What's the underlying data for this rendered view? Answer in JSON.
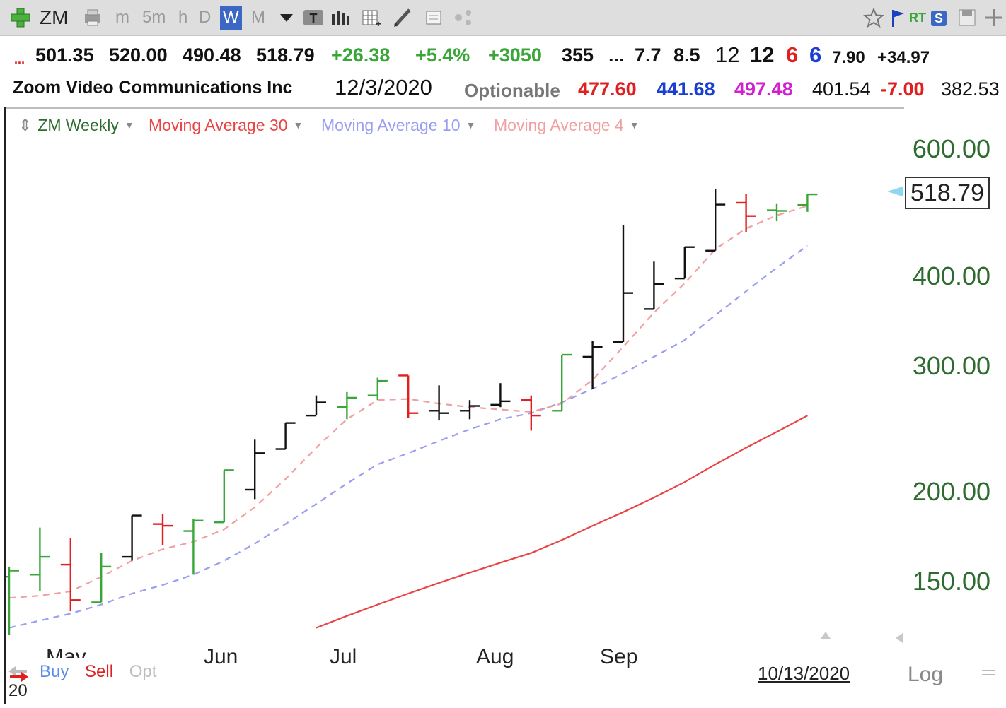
{
  "toolbar": {
    "symbol": "ZM",
    "timeframes": [
      "m",
      "5m",
      "h",
      "D",
      "W",
      "M"
    ],
    "selected_timeframe": "W",
    "rt_label": "RT",
    "s_label": "S",
    "icons": [
      "add-symbol-icon",
      "print-icon",
      "dropdown-icon",
      "text-type-icon",
      "bar-style-icon",
      "grid-add-icon",
      "pencil-icon",
      "note-icon",
      "share-icon",
      "star-icon",
      "flag-icon",
      "save-icon",
      "move-icon"
    ]
  },
  "quote_row1": {
    "ellipsis": "...",
    "open": "501.35",
    "high": "520.00",
    "low": "490.48",
    "close": "518.79",
    "change": "+26.38",
    "change_pct": "+5.4%",
    "v1": "+3050",
    "v2": "355",
    "ellipsis2": "...",
    "v3": "7.7",
    "v4": "8.5",
    "v5": "12",
    "v6": "12",
    "v7": "6",
    "v8": "6",
    "v9": "7.90",
    "v10": "+34.97"
  },
  "quote_row2": {
    "company": "Zoom Video Communications Inc",
    "date": "12/3/2020",
    "optionable": "Optionable",
    "v1": "477.60",
    "v2": "441.68",
    "v3": "497.48",
    "v4": "401.54",
    "v5": "-7.00",
    "v6": "382.53"
  },
  "legend": {
    "price": "ZM Weekly",
    "ma30": "Moving Average 30",
    "ma10": "Moving Average 10",
    "ma4": "Moving Average 4"
  },
  "bottom": {
    "buy": "Buy",
    "sell": "Sell",
    "opt": "Opt",
    "date": "10/13/2020",
    "log": "Log",
    "year_fragment": "20",
    "may_fragment": "May"
  },
  "last_price_label": "518.79",
  "colors": {
    "up": "#3aa63a",
    "down": "#e02020",
    "neutral": "#111111",
    "ma30": "#e84545",
    "ma10": "#9a9ef0",
    "ma4": "#f0a0a0",
    "axis_text": "#2e6b2e",
    "toolbar_bg": "#dedede"
  },
  "chart_data": {
    "type": "ohlc",
    "title": "ZM Weekly",
    "scale": "log",
    "ylim": [
      125,
      640
    ],
    "yticks": [
      150,
      200,
      300,
      400,
      600
    ],
    "ytick_labels": [
      "150.00",
      "200.00",
      "300.00",
      "400.00",
      "600.00"
    ],
    "xlabel": "",
    "ylabel": "",
    "x_tick_labels": [
      "May",
      "Jun",
      "Jul",
      "Aug",
      "Sep"
    ],
    "x_tick_weeks": [
      1,
      8,
      12,
      17,
      21
    ],
    "bars": [
      {
        "week": 0,
        "o": 152,
        "h": 157,
        "l": 118,
        "c": 155,
        "color": "up"
      },
      {
        "week": 1,
        "o": 153,
        "h": 178,
        "l": 145,
        "c": 162,
        "color": "up"
      },
      {
        "week": 2,
        "o": 158,
        "h": 172,
        "l": 136,
        "c": 141,
        "color": "down"
      },
      {
        "week": 3,
        "o": 140,
        "h": 164,
        "l": 140,
        "c": 157,
        "color": "up"
      },
      {
        "week": 4,
        "o": 162,
        "h": 185,
        "l": 160,
        "c": 185,
        "color": "neutral"
      },
      {
        "week": 5,
        "o": 180,
        "h": 186,
        "l": 168,
        "c": 179,
        "color": "down"
      },
      {
        "week": 6,
        "o": 176,
        "h": 183,
        "l": 153,
        "c": 182,
        "color": "up"
      },
      {
        "week": 7,
        "o": 181,
        "h": 214,
        "l": 181,
        "c": 214,
        "color": "up"
      },
      {
        "week": 8,
        "o": 201,
        "h": 236,
        "l": 195,
        "c": 226,
        "color": "neutral"
      },
      {
        "week": 9,
        "o": 229,
        "h": 249,
        "l": 229,
        "c": 249,
        "color": "neutral"
      },
      {
        "week": 10,
        "o": 255,
        "h": 272,
        "l": 255,
        "c": 266,
        "color": "neutral"
      },
      {
        "week": 11,
        "o": 262,
        "h": 275,
        "l": 252,
        "c": 270,
        "color": "up"
      },
      {
        "week": 12,
        "o": 272,
        "h": 288,
        "l": 268,
        "c": 285,
        "color": "up"
      },
      {
        "week": 13,
        "o": 290,
        "h": 290,
        "l": 253,
        "c": 257,
        "color": "down"
      },
      {
        "week": 14,
        "o": 259,
        "h": 281,
        "l": 251,
        "c": 257,
        "color": "neutral"
      },
      {
        "week": 15,
        "o": 259,
        "h": 268,
        "l": 252,
        "c": 263,
        "color": "neutral"
      },
      {
        "week": 16,
        "o": 264,
        "h": 283,
        "l": 262,
        "c": 267,
        "color": "neutral"
      },
      {
        "week": 17,
        "o": 268,
        "h": 272,
        "l": 243,
        "c": 255,
        "color": "down"
      },
      {
        "week": 18,
        "o": 259,
        "h": 310,
        "l": 259,
        "c": 310,
        "color": "up"
      },
      {
        "week": 19,
        "o": 308,
        "h": 324,
        "l": 278,
        "c": 318,
        "color": "neutral"
      },
      {
        "week": 20,
        "o": 323,
        "h": 470,
        "l": 323,
        "c": 378,
        "color": "neutral"
      },
      {
        "week": 21,
        "o": 359,
        "h": 418,
        "l": 359,
        "c": 389,
        "color": "neutral"
      },
      {
        "week": 22,
        "o": 396,
        "h": 438,
        "l": 396,
        "c": 438,
        "color": "neutral"
      },
      {
        "week": 23,
        "o": 433,
        "h": 528,
        "l": 433,
        "c": 502,
        "color": "neutral"
      },
      {
        "week": 24,
        "o": 505,
        "h": 520,
        "l": 460,
        "c": 484,
        "color": "down"
      },
      {
        "week": 25,
        "o": 493,
        "h": 503,
        "l": 476,
        "c": 492,
        "color": "up"
      },
      {
        "week": 26,
        "o": 501.35,
        "h": 520.0,
        "l": 490.48,
        "c": 518.79,
        "color": "up"
      }
    ],
    "series": [
      {
        "name": "Moving Average 30",
        "type": "line",
        "style": "solid",
        "values": [
          null,
          null,
          null,
          null,
          null,
          null,
          null,
          null,
          null,
          null,
          129,
          134,
          139,
          144,
          149,
          154,
          159,
          164,
          171,
          179,
          187,
          196,
          206,
          218,
          230,
          242,
          255
        ]
      },
      {
        "name": "Moving Average 10",
        "type": "line",
        "style": "dashed",
        "values": [
          129,
          132,
          135,
          139,
          144,
          148,
          153,
          160,
          169,
          180,
          192,
          205,
          218,
          226,
          235,
          244,
          252,
          257,
          266,
          278,
          292,
          308,
          325,
          352,
          380,
          410,
          440
        ]
      },
      {
        "name": "Moving Average 4",
        "type": "line",
        "style": "dashed",
        "values": [
          142,
          143,
          145,
          152,
          160,
          166,
          170,
          177,
          190,
          208,
          230,
          252,
          268,
          269,
          265,
          262,
          260,
          258,
          265,
          286,
          318,
          355,
          390,
          435,
          465,
          485,
          500
        ]
      }
    ]
  }
}
